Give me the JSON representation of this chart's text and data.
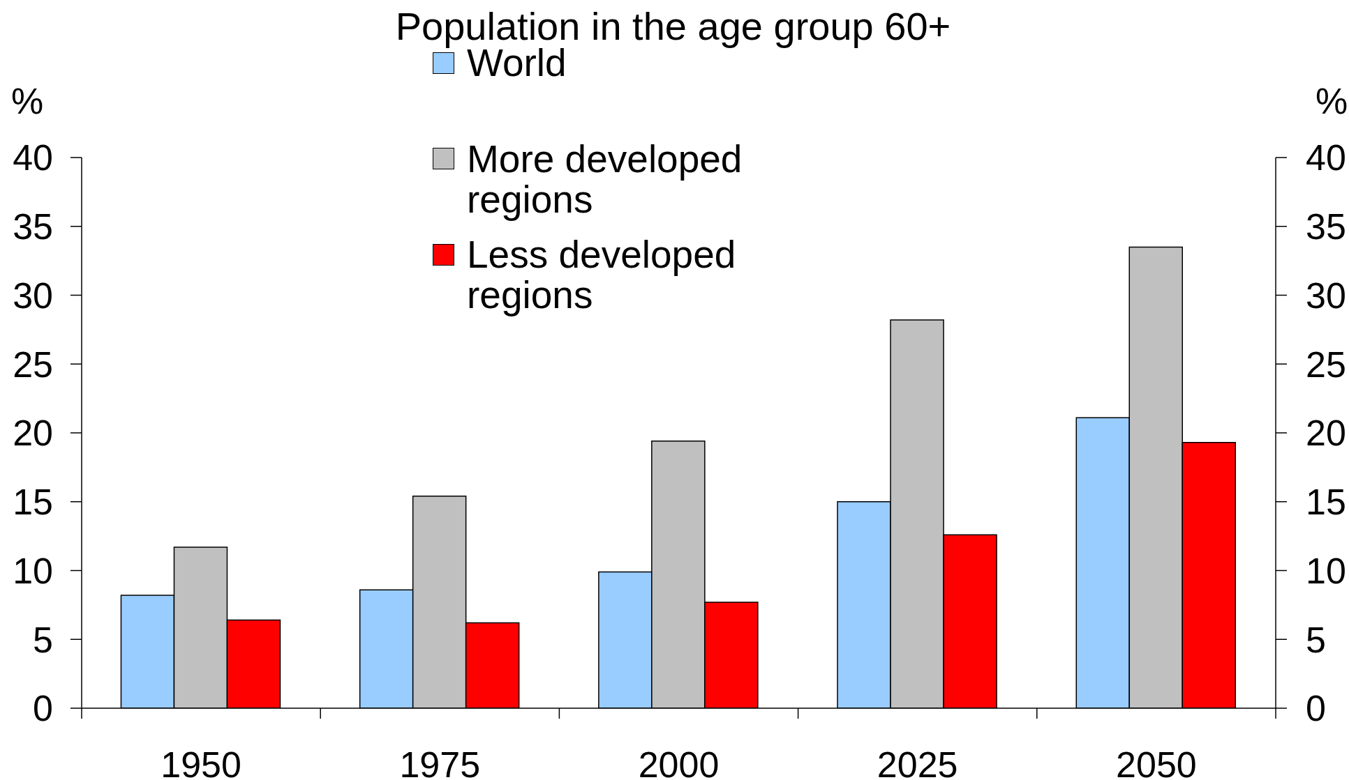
{
  "chart_data": {
    "type": "bar",
    "title": "Population in the age group 60+",
    "ylabel": "%",
    "y2label": "%",
    "categories": [
      "1950",
      "1975",
      "2000",
      "2025",
      "2050"
    ],
    "series": [
      {
        "name": "World",
        "color": "#99ccff",
        "values": [
          8.2,
          8.6,
          9.9,
          15.0,
          21.1
        ]
      },
      {
        "name": "More developed regions",
        "color": "#c0c0c0",
        "values": [
          11.7,
          15.4,
          19.4,
          28.2,
          33.5
        ]
      },
      {
        "name": "Less developed regions",
        "color": "#ff0000",
        "values": [
          6.4,
          6.2,
          7.7,
          12.6,
          19.3
        ]
      }
    ],
    "ylim": [
      0,
      40
    ],
    "yticks": [
      0,
      5,
      10,
      15,
      20,
      25,
      30,
      35,
      40
    ],
    "y2lim": [
      0,
      40
    ],
    "y2ticks": [
      0,
      5,
      10,
      15,
      20,
      25,
      30,
      35,
      40
    ],
    "legend": "top"
  }
}
